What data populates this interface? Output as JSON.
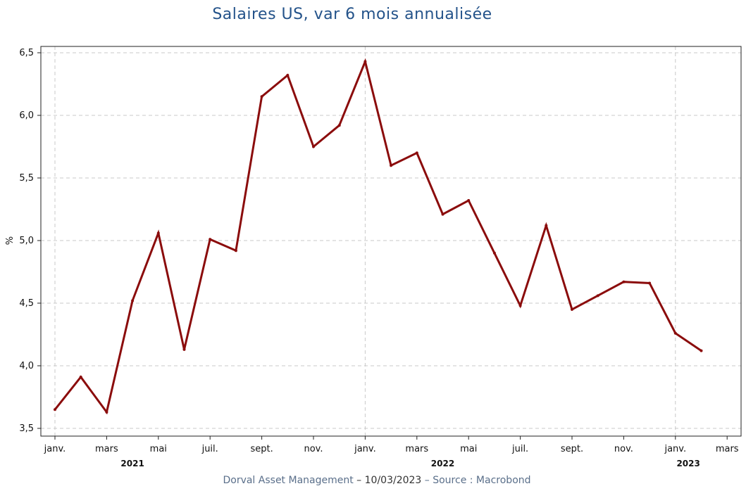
{
  "title": "Salaires US, var 6 mois annualisée",
  "footer": {
    "company": "Dorval Asset Management",
    "sep1": " – ",
    "date": "10/03/2023",
    "sep2": "  –   ",
    "source": "Source : Macrobond"
  },
  "colors": {
    "title": "#24538a",
    "line": "#8b0c0c",
    "grid": "#c8c8c8"
  },
  "chart_data": {
    "type": "line",
    "title": "Salaires US, var 6 mois annualisée",
    "ylabel": "%",
    "xlabel": "",
    "ylim": [
      3.5,
      6.5
    ],
    "yticks": [
      "3,5",
      "4,0",
      "4,5",
      "5,0",
      "5,5",
      "6,0",
      "6,5"
    ],
    "grid": true,
    "xtick_labels": [
      "janv.",
      "mars",
      "mai",
      "juil.",
      "sept.",
      "nov.",
      "janv.",
      "mars",
      "mai",
      "juil.",
      "sept.",
      "nov.",
      "janv.",
      "mars"
    ],
    "year_labels": [
      "2021",
      "2022",
      "2023"
    ],
    "x": [
      "2021-01",
      "2021-02",
      "2021-03",
      "2021-04",
      "2021-05",
      "2021-06",
      "2021-07",
      "2021-08",
      "2021-09",
      "2021-10",
      "2021-11",
      "2021-12",
      "2022-01",
      "2022-02",
      "2022-03",
      "2022-04",
      "2022-05",
      "2022-06",
      "2022-07",
      "2022-08",
      "2022-09",
      "2022-10",
      "2022-11",
      "2022-12",
      "2023-01",
      "2023-02"
    ],
    "series": [
      {
        "values": [
          3.65,
          3.91,
          3.63,
          4.52,
          5.06,
          4.13,
          5.01,
          4.92,
          6.15,
          6.32,
          5.75,
          5.92,
          6.43,
          5.6,
          5.7,
          5.21,
          5.32,
          4.9,
          4.48,
          5.12,
          4.45,
          4.56,
          4.67,
          4.66,
          4.26,
          4.12
        ]
      }
    ]
  }
}
